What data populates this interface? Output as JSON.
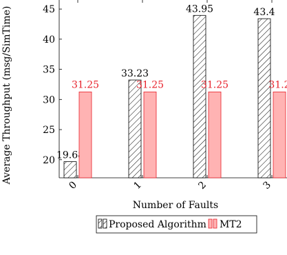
{
  "colors": {
    "mt2_fill": "#ffb3b3",
    "mt2_stroke": "#e8202a",
    "proposed_fill": "#ffffff",
    "proposed_stroke": "#000000",
    "mt2_label": "#e8202a",
    "proposed_label": "#000000"
  },
  "chart_data": {
    "type": "bar",
    "title": "",
    "xlabel": "Number of Faults",
    "ylabel": "Average Throughput (msg/SimTime)",
    "categories": [
      "0",
      "1",
      "2",
      "3"
    ],
    "ylim": [
      17,
      46.5
    ],
    "yticks": [
      20,
      25,
      30,
      35,
      40,
      45
    ],
    "grid": false,
    "legend_position": "bottom",
    "series": [
      {
        "name": "Proposed Algorithm",
        "pattern": "hatched",
        "values": [
          19.68,
          33.23,
          43.95,
          43.4
        ],
        "labels": [
          "19.68",
          "33.23",
          "43.95",
          "43.4"
        ]
      },
      {
        "name": "MT2",
        "pattern": "solid",
        "values": [
          31.25,
          31.25,
          31.25,
          31.25
        ],
        "labels": [
          "31.25",
          "31.25",
          "31.25",
          "31.2"
        ]
      }
    ]
  }
}
